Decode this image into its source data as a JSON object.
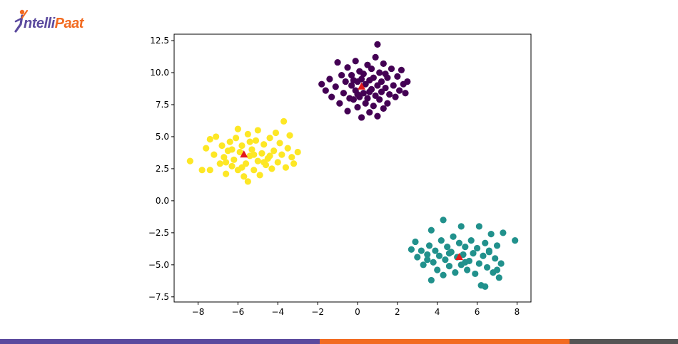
{
  "brand": {
    "name_part1": "ntelli",
    "name_part2": "Paat",
    "colors": {
      "purple": "#5b4a9e",
      "orange": "#f26b21",
      "dark": "#555555"
    }
  },
  "chart_data": {
    "type": "scatter",
    "title": "",
    "xlabel": "",
    "ylabel": "",
    "xlim": [
      -9.2,
      8.7
    ],
    "ylim": [
      -7.9,
      13.0
    ],
    "xticks": [
      -8,
      -6,
      -4,
      -2,
      0,
      2,
      4,
      6,
      8
    ],
    "yticks": [
      -7.5,
      -5.0,
      -2.5,
      0.0,
      2.5,
      5.0,
      7.5,
      10.0,
      12.5
    ],
    "ytick_labels": [
      "−7.5",
      "−5.0",
      "−2.5",
      "0.0",
      "2.5",
      "5.0",
      "7.5",
      "10.0",
      "12.5"
    ],
    "xtick_labels": [
      "−8",
      "−6",
      "−4",
      "−2",
      "0",
      "2",
      "4",
      "6",
      "8"
    ],
    "grid": false,
    "clusters": [
      {
        "color": "#440154",
        "centroid": [
          0.2,
          8.9
        ],
        "points": [
          [
            -1.8,
            9.1
          ],
          [
            -1.6,
            8.6
          ],
          [
            -1.4,
            9.5
          ],
          [
            -1.3,
            8.1
          ],
          [
            -1.1,
            8.9
          ],
          [
            -1.0,
            10.8
          ],
          [
            -0.9,
            7.6
          ],
          [
            -0.8,
            9.8
          ],
          [
            -0.7,
            8.4
          ],
          [
            -0.6,
            9.3
          ],
          [
            -0.5,
            7.0
          ],
          [
            -0.5,
            10.4
          ],
          [
            -0.4,
            8.0
          ],
          [
            -0.3,
            9.0
          ],
          [
            -0.3,
            9.8
          ],
          [
            -0.2,
            7.9
          ],
          [
            -0.1,
            8.6
          ],
          [
            -0.1,
            10.9
          ],
          [
            0.0,
            9.3
          ],
          [
            0.0,
            7.3
          ],
          [
            0.1,
            8.1
          ],
          [
            0.1,
            10.1
          ],
          [
            0.2,
            9.5
          ],
          [
            0.2,
            6.5
          ],
          [
            0.3,
            8.4
          ],
          [
            0.3,
            9.9
          ],
          [
            0.4,
            7.6
          ],
          [
            0.4,
            9.1
          ],
          [
            0.5,
            10.6
          ],
          [
            0.5,
            8.0
          ],
          [
            0.6,
            9.4
          ],
          [
            0.6,
            6.9
          ],
          [
            0.7,
            8.7
          ],
          [
            0.7,
            10.3
          ],
          [
            0.8,
            7.4
          ],
          [
            0.8,
            9.6
          ],
          [
            0.9,
            8.2
          ],
          [
            0.9,
            11.2
          ],
          [
            1.0,
            9.0
          ],
          [
            1.0,
            6.6
          ],
          [
            1.1,
            7.9
          ],
          [
            1.1,
            10.0
          ],
          [
            1.2,
            8.5
          ],
          [
            1.2,
            9.3
          ],
          [
            1.3,
            7.2
          ],
          [
            1.3,
            10.7
          ],
          [
            1.4,
            8.8
          ],
          [
            1.5,
            9.6
          ],
          [
            1.5,
            7.6
          ],
          [
            1.6,
            8.3
          ],
          [
            1.7,
            10.3
          ],
          [
            1.8,
            9.0
          ],
          [
            1.9,
            8.1
          ],
          [
            2.0,
            9.7
          ],
          [
            2.1,
            8.6
          ],
          [
            2.2,
            10.2
          ],
          [
            2.3,
            9.1
          ],
          [
            2.4,
            8.4
          ],
          [
            2.5,
            9.3
          ],
          [
            1.0,
            12.2
          ],
          [
            -0.2,
            9.4
          ],
          [
            0.6,
            8.5
          ],
          [
            1.4,
            9.9
          ],
          [
            0.0,
            8.3
          ]
        ]
      },
      {
        "color": "#fde725",
        "centroid": [
          -5.7,
          3.6
        ],
        "points": [
          [
            -8.4,
            3.1
          ],
          [
            -7.8,
            2.4
          ],
          [
            -7.6,
            4.1
          ],
          [
            -7.4,
            2.4
          ],
          [
            -7.4,
            4.8
          ],
          [
            -7.2,
            3.6
          ],
          [
            -7.1,
            5.0
          ],
          [
            -6.9,
            2.9
          ],
          [
            -6.8,
            4.3
          ],
          [
            -6.7,
            3.4
          ],
          [
            -6.6,
            2.1
          ],
          [
            -6.5,
            3.9
          ],
          [
            -6.4,
            4.6
          ],
          [
            -6.3,
            2.7
          ],
          [
            -6.2,
            3.2
          ],
          [
            -6.1,
            4.9
          ],
          [
            -6.0,
            5.6
          ],
          [
            -6.0,
            2.4
          ],
          [
            -5.9,
            3.8
          ],
          [
            -5.8,
            4.3
          ],
          [
            -5.7,
            1.9
          ],
          [
            -5.6,
            2.9
          ],
          [
            -5.5,
            5.2
          ],
          [
            -5.5,
            1.5
          ],
          [
            -5.4,
            3.5
          ],
          [
            -5.3,
            4.0
          ],
          [
            -5.2,
            2.4
          ],
          [
            -5.1,
            4.7
          ],
          [
            -5.0,
            3.1
          ],
          [
            -5.0,
            5.5
          ],
          [
            -4.9,
            2.0
          ],
          [
            -4.8,
            3.7
          ],
          [
            -4.7,
            4.4
          ],
          [
            -4.6,
            2.8
          ],
          [
            -4.5,
            3.3
          ],
          [
            -4.4,
            4.9
          ],
          [
            -4.3,
            2.5
          ],
          [
            -4.2,
            3.9
          ],
          [
            -4.1,
            5.3
          ],
          [
            -4.0,
            3.0
          ],
          [
            -3.9,
            4.5
          ],
          [
            -3.8,
            3.6
          ],
          [
            -3.7,
            6.2
          ],
          [
            -3.6,
            2.6
          ],
          [
            -3.5,
            4.1
          ],
          [
            -3.4,
            5.1
          ],
          [
            -3.3,
            3.4
          ],
          [
            -3.2,
            2.9
          ],
          [
            -3.0,
            3.8
          ],
          [
            -6.3,
            4.0
          ],
          [
            -5.8,
            2.6
          ],
          [
            -5.2,
            3.6
          ],
          [
            -4.7,
            3.0
          ],
          [
            -6.6,
            3.0
          ],
          [
            -5.4,
            4.6
          ],
          [
            -4.4,
            3.5
          ]
        ]
      },
      {
        "color": "#21918c",
        "centroid": [
          5.1,
          -4.4
        ],
        "points": [
          [
            2.7,
            -3.8
          ],
          [
            2.9,
            -3.2
          ],
          [
            3.0,
            -4.4
          ],
          [
            3.2,
            -3.9
          ],
          [
            3.3,
            -5.0
          ],
          [
            3.5,
            -4.2
          ],
          [
            3.6,
            -3.5
          ],
          [
            3.7,
            -2.3
          ],
          [
            3.7,
            -6.2
          ],
          [
            3.8,
            -4.8
          ],
          [
            3.9,
            -3.9
          ],
          [
            4.0,
            -5.4
          ],
          [
            4.1,
            -4.3
          ],
          [
            4.2,
            -3.1
          ],
          [
            4.3,
            -1.5
          ],
          [
            4.3,
            -5.8
          ],
          [
            4.4,
            -4.6
          ],
          [
            4.5,
            -3.6
          ],
          [
            4.6,
            -5.1
          ],
          [
            4.7,
            -4.0
          ],
          [
            4.8,
            -2.8
          ],
          [
            4.9,
            -5.6
          ],
          [
            5.0,
            -4.4
          ],
          [
            5.1,
            -3.3
          ],
          [
            5.2,
            -5.0
          ],
          [
            5.2,
            -2.0
          ],
          [
            5.3,
            -4.2
          ],
          [
            5.4,
            -3.6
          ],
          [
            5.5,
            -5.4
          ],
          [
            5.6,
            -4.7
          ],
          [
            5.7,
            -3.1
          ],
          [
            5.8,
            -4.1
          ],
          [
            5.9,
            -5.7
          ],
          [
            6.0,
            -3.7
          ],
          [
            6.1,
            -2.0
          ],
          [
            6.1,
            -4.9
          ],
          [
            6.2,
            -6.6
          ],
          [
            6.3,
            -4.3
          ],
          [
            6.4,
            -3.3
          ],
          [
            6.4,
            -6.7
          ],
          [
            6.5,
            -5.2
          ],
          [
            6.6,
            -4.0
          ],
          [
            6.7,
            -2.6
          ],
          [
            6.8,
            -5.6
          ],
          [
            6.9,
            -4.5
          ],
          [
            7.0,
            -3.5
          ],
          [
            7.1,
            -6.0
          ],
          [
            7.2,
            -4.9
          ],
          [
            7.3,
            -2.5
          ],
          [
            7.0,
            -5.4
          ],
          [
            7.9,
            -3.1
          ],
          [
            4.6,
            -4.1
          ],
          [
            5.4,
            -4.8
          ],
          [
            3.5,
            -4.6
          ],
          [
            6.6,
            -3.9
          ]
        ]
      }
    ],
    "centroid_marker": {
      "shape": "triangle",
      "color": "#e31a1c"
    }
  }
}
